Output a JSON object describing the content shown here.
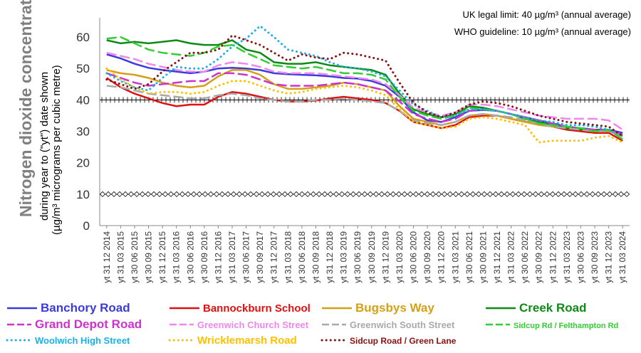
{
  "chart_data": {
    "type": "line",
    "ylabel": "Nitrogen dioxide concentration",
    "ylabel_sub1": "during year to (\"yt\") date shown",
    "ylabel_sub2": "(µg/m³ micrograms per cubic metre)",
    "ylim": [
      0,
      65
    ],
    "yticks": [
      0,
      10,
      20,
      30,
      40,
      50,
      60
    ],
    "grid": false,
    "x": [
      "yt 31 12 2014",
      "yt 31 03 2015",
      "yt 30 06 2015",
      "yt 30 09 2015",
      "yt 31 12 2015",
      "yt 31 03 2016",
      "yt 30 06 2016",
      "yt 30 09 2016",
      "yt 31 12 2016",
      "yt 31 03 2017",
      "yt 30 06 2017",
      "yt 30 09 2017",
      "yt 31 12 2017",
      "yt 31 03 2018",
      "yt 30 06 2018",
      "yt 30 09 2018",
      "yt 31 12 2018",
      "yt 31 03 2019",
      "yt 30 06 2019",
      "yt 30 09 2019",
      "yt 31 12 2019",
      "yt 31 03 2020",
      "yt 30 06 2020",
      "yt 30 09 2020",
      "yt 31 12 2020",
      "yt 31 03 2021",
      "yt 30 06 2021",
      "yt 30 09 2021",
      "yt 31 12 2021",
      "yt 31 03 2022",
      "yt 30 06 2022",
      "yt 30 09 2022",
      "yt 31 12 2022",
      "yt 31 03 2023",
      "yt 30 06 2023",
      "yt 30 09 2023",
      "yt 31 12 2023",
      "yt 31 03 2024"
    ],
    "reference_lines": [
      {
        "label": "UK legal limit:  40 µg/m³  (annual average)",
        "value": 40
      },
      {
        "label": "WHO guideline:  10 µg/m³  (annual average)",
        "value": 10
      }
    ],
    "series": [
      {
        "name": "Banchory Road",
        "color": "#3b3bdb",
        "style": "solid",
        "values": [
          54.5,
          53.2,
          51.5,
          50.2,
          49.5,
          49.0,
          48.5,
          49.0,
          50.0,
          50.2,
          50.0,
          49.5,
          48.5,
          48.2,
          48.0,
          47.8,
          47.5,
          47.0,
          46.8,
          46.0,
          44.5,
          41.0,
          36.0,
          33.5,
          33.0,
          34.5,
          36.5,
          36.8,
          36.5,
          35.5,
          34.5,
          33.5,
          32.5,
          31.5,
          31.0,
          30.5,
          30.5,
          29.5
        ]
      },
      {
        "name": "Bannockburn School",
        "color": "#e01010",
        "style": "solid",
        "values": [
          47.0,
          44.0,
          42.0,
          40.5,
          39.0,
          38.0,
          38.5,
          38.5,
          41.0,
          42.5,
          42.0,
          41.0,
          40.0,
          39.5,
          39.5,
          39.8,
          40.5,
          41.0,
          40.5,
          40.0,
          39.0,
          36.5,
          33.0,
          32.0,
          31.0,
          32.0,
          34.5,
          35.0,
          35.0,
          34.0,
          33.0,
          32.5,
          31.5,
          30.5,
          30.0,
          29.5,
          29.5,
          27.0
        ]
      },
      {
        "name": "Bugsbys Way",
        "color": "#d4a017",
        "style": "solid",
        "values": [
          49.5,
          48.5,
          48.0,
          47.0,
          45.5,
          44.5,
          44.0,
          44.5,
          47.5,
          49.5,
          49.5,
          48.0,
          45.0,
          43.5,
          43.5,
          44.0,
          44.5,
          45.5,
          45.0,
          44.0,
          43.0,
          38.0,
          34.0,
          33.0,
          32.0,
          33.0,
          35.0,
          35.5,
          35.0,
          34.0,
          33.0,
          32.0,
          31.5,
          31.0,
          30.5,
          30.0,
          30.0,
          29.0
        ]
      },
      {
        "name": "Creek Road",
        "color": "#0e8a16",
        "style": "solid",
        "values": [
          59.0,
          58.0,
          58.5,
          58.0,
          58.5,
          59.0,
          58.0,
          57.5,
          57.5,
          59.0,
          56.0,
          55.0,
          52.0,
          51.5,
          51.5,
          52.0,
          51.0,
          50.5,
          50.0,
          49.5,
          48.0,
          42.0,
          37.0,
          35.5,
          34.5,
          35.5,
          38.0,
          37.5,
          36.5,
          35.5,
          34.0,
          33.0,
          32.0,
          31.0,
          30.5,
          30.5,
          30.5,
          28.5
        ]
      },
      {
        "name": "Grand Depot Road",
        "color": "#cc33cc",
        "style": "dash",
        "values": [
          48.5,
          47.0,
          45.5,
          44.5,
          45.0,
          45.5,
          46.0,
          46.0,
          48.5,
          48.5,
          48.0,
          46.5,
          45.0,
          44.5,
          44.5,
          44.5,
          45.0,
          45.5,
          45.0,
          44.0,
          43.0,
          39.5,
          35.5,
          34.0,
          33.0,
          34.0,
          36.5,
          37.0,
          36.5,
          35.5,
          34.5,
          33.5,
          32.5,
          31.5,
          31.0,
          30.5,
          30.5,
          29.0
        ]
      },
      {
        "name": "Greenwich Church Street",
        "color": "#ee88ee",
        "style": "dash",
        "values": [
          55.0,
          54.0,
          53.0,
          51.5,
          50.5,
          49.5,
          49.0,
          49.0,
          51.0,
          52.0,
          51.5,
          50.5,
          49.0,
          48.5,
          48.5,
          48.5,
          48.0,
          47.5,
          47.0,
          46.5,
          45.0,
          41.5,
          37.5,
          36.0,
          35.0,
          36.0,
          38.5,
          38.5,
          38.0,
          37.0,
          36.0,
          35.0,
          34.5,
          34.0,
          34.0,
          34.0,
          33.5,
          30.5
        ]
      },
      {
        "name": "Greenwich South Street",
        "color": "#a9a9a9",
        "style": "dash",
        "values": [
          44.5,
          44.0,
          43.0,
          42.0,
          41.5,
          41.0,
          40.5,
          40.5,
          41.5,
          42.0,
          41.5,
          40.5,
          40.0,
          39.5,
          39.5,
          40.0,
          40.0,
          40.5,
          40.0,
          39.5,
          39.0,
          36.5,
          33.5,
          32.5,
          32.0,
          33.0,
          35.0,
          35.5,
          35.0,
          34.5,
          33.5,
          32.5,
          31.5,
          31.0,
          30.5,
          30.0,
          30.0,
          28.5
        ]
      },
      {
        "name": "Sidcup Rd / Felthampton Rd",
        "color": "#33cc33",
        "style": "dash",
        "values": [
          59.5,
          60.0,
          58.0,
          56.0,
          55.0,
          54.5,
          54.0,
          55.0,
          57.0,
          57.5,
          55.0,
          53.0,
          51.0,
          50.5,
          50.0,
          50.5,
          49.5,
          48.5,
          48.5,
          48.0,
          46.5,
          41.0,
          36.5,
          35.0,
          34.0,
          35.0,
          37.5,
          37.0,
          36.5,
          35.5,
          34.0,
          32.5,
          32.0,
          31.5,
          31.0,
          30.0,
          30.5,
          27.5
        ]
      },
      {
        "name": "Woolwich High Street",
        "color": "#1ab0e8",
        "style": "dot",
        "values": [
          48.5,
          46.0,
          44.0,
          43.0,
          47.0,
          50.5,
          50.0,
          50.0,
          53.0,
          57.0,
          59.5,
          63.5,
          60.0,
          56.0,
          55.0,
          54.0,
          52.0,
          50.5,
          50.0,
          49.0,
          47.5,
          43.0,
          38.5,
          36.5,
          34.5,
          35.0,
          37.0,
          37.0,
          36.5,
          35.5,
          34.5,
          33.5,
          33.0,
          32.0,
          32.0,
          31.5,
          30.5,
          28.5
        ]
      },
      {
        "name": "Wricklemarsh Road",
        "color": "#ffc000",
        "style": "dot",
        "values": [
          50.0,
          46.5,
          44.0,
          42.0,
          42.5,
          42.5,
          42.0,
          42.5,
          44.5,
          46.0,
          46.0,
          44.5,
          43.0,
          42.0,
          42.5,
          43.5,
          44.0,
          44.5,
          44.0,
          43.0,
          41.5,
          37.0,
          33.0,
          32.0,
          31.0,
          31.5,
          34.0,
          34.5,
          34.0,
          33.0,
          32.0,
          26.5,
          27.0,
          27.0,
          27.0,
          28.0,
          28.5,
          26.5
        ]
      },
      {
        "name": "Sidcup Road / Green Lane",
        "color": "#8b1010",
        "style": "dot",
        "values": [
          46.5,
          45.0,
          43.5,
          45.0,
          49.0,
          52.0,
          55.0,
          55.0,
          56.0,
          60.5,
          59.0,
          57.5,
          55.0,
          52.5,
          54.5,
          53.5,
          53.0,
          55.0,
          54.5,
          53.5,
          52.5,
          45.5,
          39.0,
          36.0,
          34.5,
          36.0,
          38.5,
          39.5,
          39.0,
          38.0,
          36.5,
          35.0,
          34.0,
          33.0,
          32.5,
          32.0,
          31.5,
          28.5
        ]
      }
    ]
  }
}
